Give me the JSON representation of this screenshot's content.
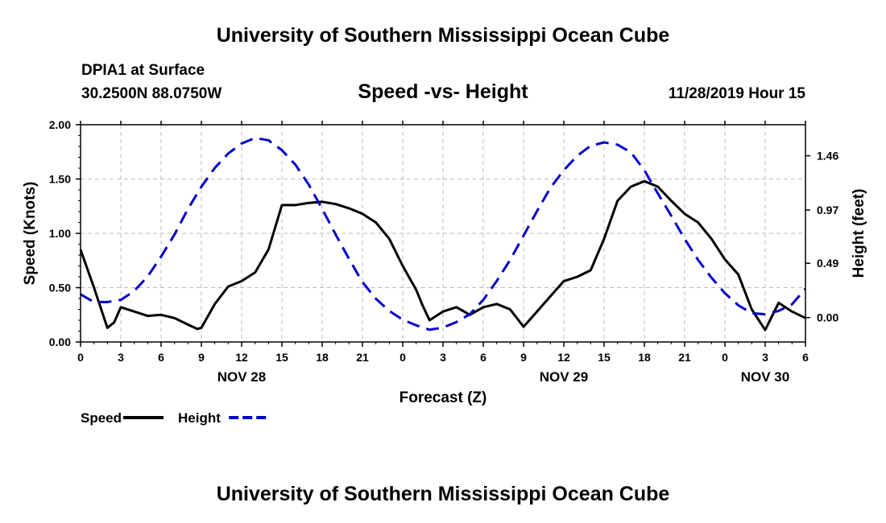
{
  "header": {
    "title": "University of Southern Mississippi Ocean Cube",
    "station": "DPIA1 at Surface",
    "coords": "30.2500N 88.0750W",
    "subtitle": "Speed -vs- Height",
    "datetime": "11/28/2019 Hour 15"
  },
  "footer": {
    "title": "University of Southern Mississippi Ocean Cube"
  },
  "chart_data": {
    "type": "line",
    "xlabel": "Forecast (Z)",
    "ylabel_left": "Speed (Knots)",
    "ylabel_right": "Height (feet)",
    "x_unit": "hours since 11/28 00Z",
    "xlim": [
      0,
      54
    ],
    "ylim_left": [
      0,
      2
    ],
    "ylim_right": [
      -0.22,
      1.74
    ],
    "x_ticks": [
      0,
      3,
      6,
      9,
      12,
      15,
      18,
      21,
      24,
      27,
      30,
      33,
      36,
      39,
      42,
      45,
      48,
      51,
      54
    ],
    "x_tick_labels": [
      "0",
      "3",
      "6",
      "9",
      "12",
      "15",
      "18",
      "21",
      "0",
      "3",
      "6",
      "9",
      "12",
      "15",
      "18",
      "21",
      "0",
      "3",
      "6"
    ],
    "y_left_ticks": [
      0,
      0.5,
      1,
      1.5,
      2
    ],
    "y_left_tick_labels": [
      "0.00",
      "0.50",
      "1.00",
      "1.50",
      "2.00"
    ],
    "y_right_ticks": [
      0,
      0.49,
      0.97,
      1.46
    ],
    "y_right_tick_labels": [
      "0.00",
      "0.49",
      "0.97",
      "1.46"
    ],
    "date_labels": [
      {
        "x": 12,
        "text": "NOV 28"
      },
      {
        "x": 36,
        "text": "NOV 29"
      },
      {
        "x": 51,
        "text": "NOV 30"
      }
    ],
    "grid": true,
    "legend": [
      {
        "name": "Speed",
        "color": "#000000",
        "style": "solid"
      },
      {
        "name": "Height",
        "color": "#0000cc",
        "style": "dashed"
      }
    ],
    "series": [
      {
        "name": "Speed",
        "axis": "left",
        "color": "#000000",
        "x": [
          0,
          1,
          2,
          2.5,
          3,
          4,
          5,
          6,
          7,
          8,
          8.7,
          9,
          10,
          11,
          12,
          13,
          14,
          15,
          16,
          17,
          18,
          19,
          20,
          21,
          22,
          23,
          24,
          25,
          25.5,
          26,
          27,
          27.5,
          28,
          29,
          30,
          31,
          32,
          33,
          34,
          35,
          36,
          37,
          38,
          39,
          40,
          41,
          42,
          43,
          44,
          45,
          46,
          47,
          48,
          49,
          50,
          51,
          52,
          53,
          54
        ],
        "values": [
          0.85,
          0.5,
          0.13,
          0.18,
          0.32,
          0.28,
          0.24,
          0.25,
          0.22,
          0.16,
          0.12,
          0.13,
          0.35,
          0.51,
          0.56,
          0.64,
          0.85,
          1.26,
          1.26,
          1.28,
          1.29,
          1.27,
          1.23,
          1.18,
          1.1,
          0.95,
          0.7,
          0.48,
          0.33,
          0.2,
          0.28,
          0.3,
          0.32,
          0.25,
          0.32,
          0.35,
          0.3,
          0.14,
          0.28,
          0.42,
          0.56,
          0.6,
          0.66,
          0.95,
          1.3,
          1.43,
          1.48,
          1.43,
          1.3,
          1.18,
          1.1,
          0.95,
          0.76,
          0.62,
          0.3,
          0.11,
          0.36,
          0.28,
          0.22
        ]
      },
      {
        "name": "Height",
        "axis": "right",
        "color": "#0000cc",
        "x": [
          0,
          1,
          2,
          3,
          4,
          5,
          6,
          7,
          8,
          9,
          10,
          11,
          12,
          13,
          14,
          15,
          16,
          17,
          18,
          19,
          20,
          21,
          22,
          23,
          24,
          25,
          26,
          27,
          28,
          29,
          30,
          31,
          32,
          33,
          34,
          35,
          36,
          37,
          38,
          39,
          40,
          41,
          42,
          43,
          44,
          45,
          46,
          47,
          48,
          49,
          50,
          51,
          52,
          53,
          54
        ],
        "values": [
          0.21,
          0.14,
          0.14,
          0.16,
          0.24,
          0.37,
          0.55,
          0.75,
          0.98,
          1.18,
          1.35,
          1.48,
          1.57,
          1.62,
          1.6,
          1.51,
          1.38,
          1.2,
          0.98,
          0.75,
          0.53,
          0.32,
          0.17,
          0.06,
          -0.02,
          -0.07,
          -0.11,
          -0.09,
          -0.04,
          0.03,
          0.16,
          0.33,
          0.52,
          0.74,
          0.96,
          1.17,
          1.33,
          1.46,
          1.55,
          1.58,
          1.56,
          1.49,
          1.33,
          1.12,
          0.92,
          0.71,
          0.52,
          0.36,
          0.22,
          0.11,
          0.04,
          0.03,
          0.06,
          0.12,
          0.26
        ]
      }
    ]
  }
}
